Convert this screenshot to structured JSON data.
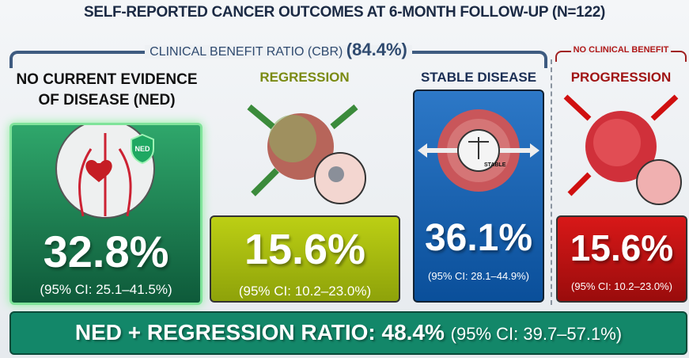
{
  "title": "SELF-REPORTED CANCER OUTCOMES AT 6-MONTH FOLLOW-UP (N=122)",
  "cbr": {
    "label": "CLINICAL BENEFIT RATIO (CBR)",
    "value": "(84.4%)"
  },
  "no_benefit": {
    "label": "NO CLINICAL BENEFIT"
  },
  "categories": [
    {
      "heading_line1": "NO CURRENT EVIDENCE",
      "heading_line2": "OF DISEASE (NED)",
      "badge": "NED",
      "value": "32.8%",
      "ci": "(95% CI: 25.1–41.5%)",
      "color": "#1a7a4e"
    },
    {
      "heading": "REGRESSION",
      "value": "15.6%",
      "ci": "(95% CI: 10.2–23.0%)",
      "color": "#a6b812"
    },
    {
      "heading": "STABLE DISEASE",
      "badge": "STABLE",
      "value": "36.1%",
      "ci": "(95% CI: 28.1–44.9%)",
      "color": "#1763b0"
    },
    {
      "heading": "PROGRESSION",
      "value": "15.6%",
      "ci": "(95% CI: 10.2–23.0%)",
      "color": "#c01212"
    }
  ],
  "summary": {
    "label": "NED + REGRESSION RATIO: 48.4%",
    "ci": "(95% CI: 39.7–57.1%)"
  }
}
